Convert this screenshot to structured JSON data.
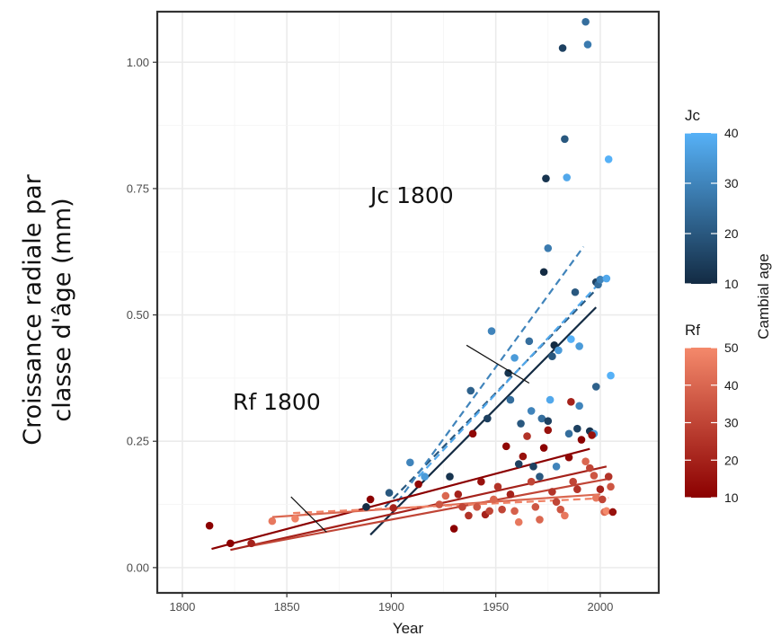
{
  "chart_data": {
    "type": "scatter",
    "xlabel": "Year",
    "ylabel_line1": "Croissance radiale par",
    "ylabel_line2": "classe d'âge  (mm)",
    "xlim": [
      1788,
      2028
    ],
    "ylim": [
      -0.05,
      1.1
    ],
    "x_ticks": [
      1800,
      1850,
      1900,
      1950,
      2000
    ],
    "y_ticks": [
      0.0,
      0.25,
      0.5,
      0.75,
      1.0
    ],
    "y_tick_labels": [
      "0.00",
      "0.25",
      "0.50",
      "0.75",
      "1.00"
    ],
    "grid": true,
    "annotations": [
      {
        "id": "jc",
        "text": "Jc 1800",
        "arrow_from": [
          1966,
          0.365
        ],
        "arrow_to": [
          1936,
          0.44
        ]
      },
      {
        "id": "rf",
        "text": "Rf 1800",
        "arrow_from": [
          1869,
          0.07
        ],
        "arrow_to": [
          1852,
          0.14
        ]
      }
    ],
    "legends": {
      "jc": {
        "title": "Jc",
        "min": 10,
        "max": 40,
        "ticks": [
          10,
          20,
          30,
          40
        ],
        "low_color": "#132B43",
        "high_color": "#56B1F7"
      },
      "rf": {
        "title": "Rf",
        "min": 10,
        "max": 50,
        "ticks": [
          10,
          20,
          30,
          40,
          50
        ],
        "low_color": "#8B0000",
        "high_color": "#F4896B"
      },
      "shared_title": "Cambial age"
    },
    "series": [
      {
        "group": "jc",
        "points": [
          [
            1888,
            0.12,
            10
          ],
          [
            1899,
            0.148,
            20
          ],
          [
            1909,
            0.208,
            30
          ],
          [
            1916,
            0.18,
            35
          ],
          [
            1928,
            0.18,
            12
          ],
          [
            1938,
            0.35,
            22
          ],
          [
            1946,
            0.295,
            15
          ],
          [
            1948,
            0.468,
            30
          ],
          [
            1956,
            0.385,
            12
          ],
          [
            1957,
            0.332,
            25
          ],
          [
            1959,
            0.415,
            35
          ],
          [
            1961,
            0.205,
            15
          ],
          [
            1962,
            0.285,
            20
          ],
          [
            1966,
            0.448,
            25
          ],
          [
            1967,
            0.31,
            30
          ],
          [
            1968,
            0.2,
            15
          ],
          [
            1971,
            0.18,
            20
          ],
          [
            1972,
            0.295,
            25
          ],
          [
            1973,
            0.585,
            10
          ],
          [
            1974,
            0.77,
            12
          ],
          [
            1975,
            0.632,
            28
          ],
          [
            1975,
            0.29,
            15
          ],
          [
            1976,
            0.332,
            38
          ],
          [
            1977,
            0.418,
            20
          ],
          [
            1978,
            0.44,
            10
          ],
          [
            1979,
            0.2,
            30
          ],
          [
            1980,
            0.43,
            35
          ],
          [
            1982,
            1.028,
            15
          ],
          [
            1983,
            0.848,
            20
          ],
          [
            1984,
            0.772,
            38
          ],
          [
            1985,
            0.265,
            25
          ],
          [
            1986,
            0.452,
            40
          ],
          [
            1988,
            0.545,
            20
          ],
          [
            1989,
            0.275,
            15
          ],
          [
            1990,
            0.438,
            35
          ],
          [
            1990,
            0.32,
            30
          ],
          [
            1993,
            1.08,
            25
          ],
          [
            1994,
            1.035,
            28
          ],
          [
            1995,
            0.27,
            12
          ],
          [
            1997,
            0.265,
            35
          ],
          [
            1998,
            0.565,
            15
          ],
          [
            1998,
            0.358,
            22
          ],
          [
            1999,
            0.56,
            25
          ],
          [
            2000,
            0.57,
            30
          ],
          [
            2003,
            0.572,
            38
          ],
          [
            2004,
            0.808,
            40
          ],
          [
            2005,
            0.38,
            40
          ]
        ],
        "lines": [
          {
            "x": [
              1890,
              1998
            ],
            "y": [
              0.065,
              0.515
            ],
            "age": 10,
            "dash": false
          },
          {
            "x": [
              1897,
              1998
            ],
            "y": [
              0.12,
              0.55
            ],
            "age": 20,
            "dash": true
          },
          {
            "x": [
              1903,
              1992
            ],
            "y": [
              0.13,
              0.635
            ],
            "age": 30,
            "dash": true
          },
          {
            "x": [
              1913,
              2000
            ],
            "y": [
              0.18,
              0.565
            ],
            "age": 38,
            "dash": true
          }
        ]
      },
      {
        "group": "rf",
        "points": [
          [
            1813,
            0.083,
            10
          ],
          [
            1823,
            0.048,
            10
          ],
          [
            1833,
            0.048,
            20
          ],
          [
            1843,
            0.092,
            45
          ],
          [
            1854,
            0.097,
            48
          ],
          [
            1890,
            0.135,
            10
          ],
          [
            1901,
            0.118,
            20
          ],
          [
            1913,
            0.165,
            12
          ],
          [
            1923,
            0.125,
            35
          ],
          [
            1926,
            0.142,
            40
          ],
          [
            1930,
            0.077,
            10
          ],
          [
            1932,
            0.145,
            20
          ],
          [
            1934,
            0.12,
            30
          ],
          [
            1937,
            0.103,
            25
          ],
          [
            1939,
            0.265,
            12
          ],
          [
            1941,
            0.12,
            35
          ],
          [
            1943,
            0.17,
            15
          ],
          [
            1945,
            0.105,
            20
          ],
          [
            1947,
            0.112,
            30
          ],
          [
            1949,
            0.135,
            40
          ],
          [
            1951,
            0.16,
            25
          ],
          [
            1953,
            0.115,
            30
          ],
          [
            1955,
            0.24,
            12
          ],
          [
            1957,
            0.145,
            20
          ],
          [
            1959,
            0.112,
            38
          ],
          [
            1961,
            0.09,
            45
          ],
          [
            1963,
            0.22,
            15
          ],
          [
            1965,
            0.26,
            25
          ],
          [
            1967,
            0.17,
            30
          ],
          [
            1969,
            0.12,
            35
          ],
          [
            1971,
            0.095,
            40
          ],
          [
            1973,
            0.237,
            10
          ],
          [
            1975,
            0.272,
            15
          ],
          [
            1977,
            0.15,
            25
          ],
          [
            1979,
            0.13,
            30
          ],
          [
            1981,
            0.115,
            35
          ],
          [
            1983,
            0.103,
            45
          ],
          [
            1985,
            0.218,
            12
          ],
          [
            1986,
            0.328,
            20
          ],
          [
            1987,
            0.17,
            30
          ],
          [
            1989,
            0.155,
            25
          ],
          [
            1991,
            0.253,
            10
          ],
          [
            1993,
            0.21,
            40
          ],
          [
            1995,
            0.197,
            30
          ],
          [
            1996,
            0.262,
            15
          ],
          [
            1997,
            0.182,
            35
          ],
          [
            1998,
            0.138,
            45
          ],
          [
            2000,
            0.155,
            20
          ],
          [
            2001,
            0.135,
            30
          ],
          [
            2002,
            0.11,
            40
          ],
          [
            2003,
            0.112,
            50
          ],
          [
            2004,
            0.18,
            25
          ],
          [
            2005,
            0.16,
            35
          ],
          [
            2006,
            0.11,
            15
          ]
        ],
        "lines": [
          {
            "x": [
              1814,
              1995
            ],
            "y": [
              0.037,
              0.235
            ],
            "age": 10,
            "dash": false
          },
          {
            "x": [
              1823,
              2003
            ],
            "y": [
              0.035,
              0.2
            ],
            "age": 20,
            "dash": false
          },
          {
            "x": [
              1833,
              2003
            ],
            "y": [
              0.043,
              0.175
            ],
            "age": 30,
            "dash": false
          },
          {
            "x": [
              1843,
              2000
            ],
            "y": [
              0.1,
              0.145
            ],
            "age": 40,
            "dash": false
          },
          {
            "x": [
              1853,
              2004
            ],
            "y": [
              0.108,
              0.138
            ],
            "age": 48,
            "dash": true
          }
        ]
      }
    ]
  }
}
